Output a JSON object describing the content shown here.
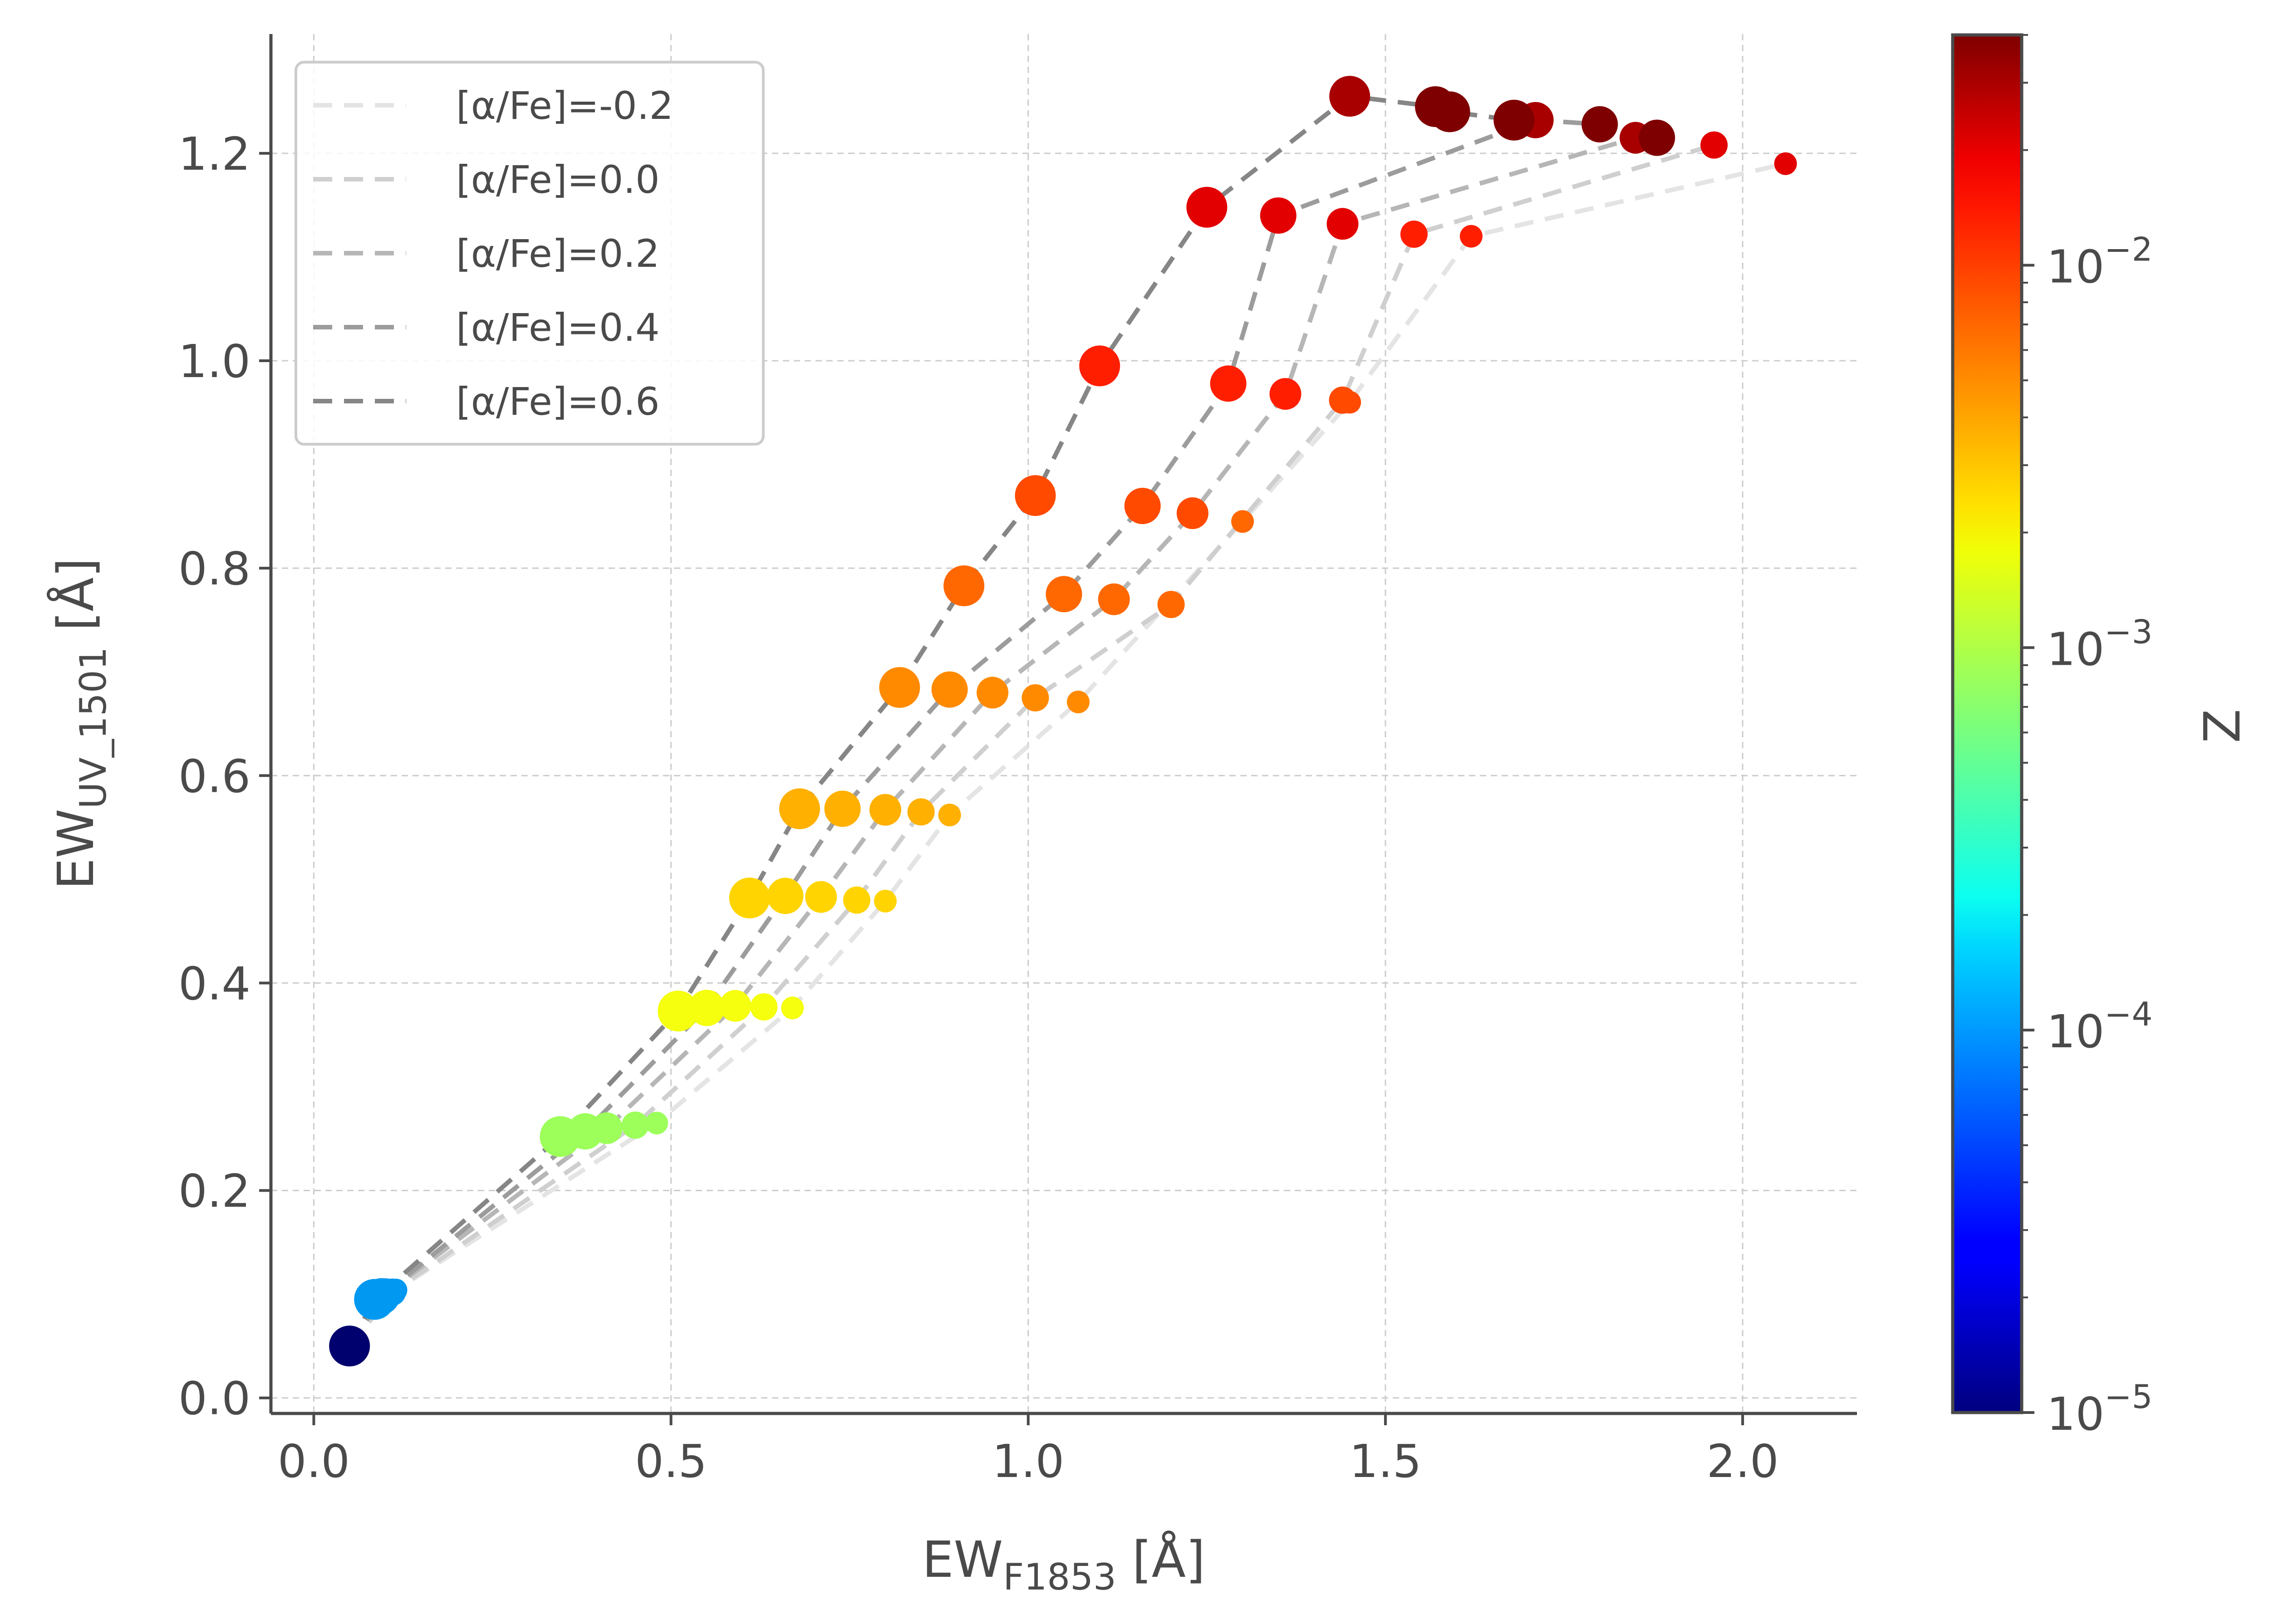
{
  "chart_data": {
    "type": "scatter",
    "xlabel": "EW",
    "xlabel_sub": "F1853",
    "xlabel_unit": " [Å]",
    "ylabel": "EW",
    "ylabel_sub": "UV_1501",
    "ylabel_unit": " [Å]",
    "xlim": [
      -0.06,
      2.16
    ],
    "ylim": [
      -0.015,
      1.315
    ],
    "xticks": [
      0.0,
      0.5,
      1.0,
      1.5,
      2.0
    ],
    "xtick_labels": [
      "0.0",
      "0.5",
      "1.0",
      "1.5",
      "2.0"
    ],
    "yticks": [
      0.0,
      0.2,
      0.4,
      0.6,
      0.8,
      1.0,
      1.2
    ],
    "ytick_labels": [
      "0.0",
      "0.2",
      "0.4",
      "0.6",
      "0.8",
      "1.0",
      "1.2"
    ],
    "grid": true,
    "legend_position": "top-left",
    "colorbar": {
      "label": "Z",
      "scale": "log",
      "range": [
        1e-05,
        0.04
      ],
      "colormap": "jet",
      "tick_values": [
        1e-05,
        0.0001,
        0.001,
        0.01
      ],
      "tick_labels": [
        {
          "base": "10",
          "exp": "−5"
        },
        {
          "base": "10",
          "exp": "−4"
        },
        {
          "base": "10",
          "exp": "−3"
        },
        {
          "base": "10",
          "exp": "−2"
        }
      ]
    },
    "z_levels": [
      1e-05,
      0.0001,
      0.0008,
      0.002,
      0.003,
      0.004,
      0.006,
      0.008,
      0.01,
      0.014,
      0.02,
      0.03,
      0.04
    ],
    "level_colors": [
      "#00006e",
      "#0098f0",
      "#9cff5a",
      "#f5ff0e",
      "#ffd400",
      "#ffb000",
      "#ff8a00",
      "#ff6800",
      "#ff4a00",
      "#ff1e00",
      "#e20000",
      "#a80000",
      "#7f0000"
    ],
    "series": [
      {
        "name": "[α/Fe]=-0.2",
        "line_color": "#e4e4e4",
        "marker_size": 1,
        "points": [
          [
            0.05,
            0.05
          ],
          [
            0.115,
            0.104
          ],
          [
            0.48,
            0.265
          ],
          [
            0.67,
            0.376
          ],
          [
            0.8,
            0.479
          ],
          [
            0.89,
            0.562
          ],
          [
            1.07,
            0.671
          ],
          [
            1.3,
            0.845
          ],
          [
            1.45,
            0.96
          ],
          [
            1.62,
            1.12
          ],
          [
            2.06,
            1.19
          ]
        ]
      },
      {
        "name": "[α/Fe]=0.0",
        "line_color": "#cfcfcf",
        "marker_size": 2,
        "points": [
          [
            0.05,
            0.05
          ],
          [
            0.11,
            0.102
          ],
          [
            0.45,
            0.263
          ],
          [
            0.63,
            0.377
          ],
          [
            0.76,
            0.48
          ],
          [
            0.85,
            0.565
          ],
          [
            1.01,
            0.675
          ],
          [
            1.2,
            0.765
          ],
          [
            1.44,
            0.962
          ],
          [
            1.54,
            1.122
          ],
          [
            1.96,
            1.208
          ]
        ]
      },
      {
        "name": "[α/Fe]=0.2",
        "line_color": "#b6b6b6",
        "marker_size": 3,
        "points": [
          [
            0.05,
            0.05
          ],
          [
            0.1,
            0.1
          ],
          [
            0.41,
            0.26
          ],
          [
            0.59,
            0.378
          ],
          [
            0.71,
            0.483
          ],
          [
            0.8,
            0.567
          ],
          [
            0.95,
            0.68
          ],
          [
            1.12,
            0.77
          ],
          [
            1.23,
            0.853
          ],
          [
            1.36,
            0.968
          ],
          [
            1.44,
            1.132
          ],
          [
            1.85,
            1.215
          ]
        ]
      },
      {
        "name": "[α/Fe]=0.4",
        "line_color": "#9c9c9c",
        "marker_size": 4,
        "points": [
          [
            0.05,
            0.05
          ],
          [
            0.095,
            0.098
          ],
          [
            0.38,
            0.257
          ],
          [
            0.55,
            0.376
          ],
          [
            0.66,
            0.484
          ],
          [
            0.74,
            0.568
          ],
          [
            0.89,
            0.683
          ],
          [
            1.05,
            0.775
          ],
          [
            1.16,
            0.86
          ],
          [
            1.28,
            0.978
          ],
          [
            1.35,
            1.14
          ],
          [
            1.71,
            1.232
          ],
          [
            1.8,
            1.228
          ],
          [
            1.88,
            1.215
          ]
        ]
      },
      {
        "name": "[α/Fe]=0.6",
        "line_color": "#868686",
        "marker_size": 5,
        "points": [
          [
            0.05,
            0.05
          ],
          [
            0.085,
            0.095
          ],
          [
            0.345,
            0.252
          ],
          [
            0.51,
            0.373
          ],
          [
            0.61,
            0.482
          ],
          [
            0.68,
            0.568
          ],
          [
            0.82,
            0.685
          ],
          [
            0.91,
            0.783
          ],
          [
            1.01,
            0.87
          ],
          [
            1.1,
            0.995
          ],
          [
            1.25,
            1.148
          ],
          [
            1.45,
            1.255
          ],
          [
            1.57,
            1.245
          ],
          [
            1.59,
            1.24
          ],
          [
            1.68,
            1.232
          ]
        ]
      }
    ]
  }
}
